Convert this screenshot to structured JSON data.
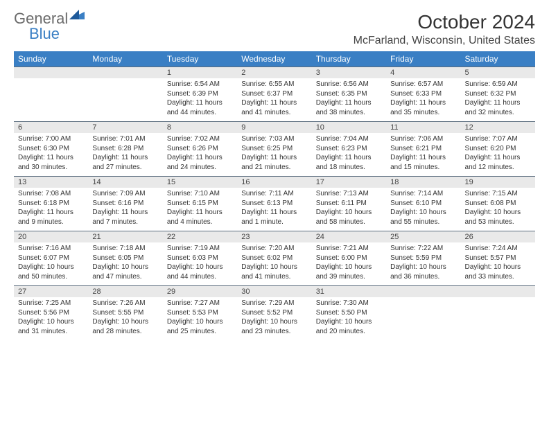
{
  "logo": {
    "part1": "General",
    "part2": "Blue"
  },
  "title": "October 2024",
  "location": "McFarland, Wisconsin, United States",
  "colors": {
    "header_bg": "#3a7fc4",
    "header_text": "#ffffff",
    "num_bg": "#e9e9e9",
    "num_border": "#5a6c7d",
    "text": "#333333",
    "logo_gray": "#6b6b6b",
    "logo_blue": "#3a7fc4",
    "page_bg": "#ffffff"
  },
  "day_names": [
    "Sunday",
    "Monday",
    "Tuesday",
    "Wednesday",
    "Thursday",
    "Friday",
    "Saturday"
  ],
  "weeks": [
    [
      {
        "n": "",
        "s": ""
      },
      {
        "n": "",
        "s": ""
      },
      {
        "n": "1",
        "s": "Sunrise: 6:54 AM\nSunset: 6:39 PM\nDaylight: 11 hours and 44 minutes."
      },
      {
        "n": "2",
        "s": "Sunrise: 6:55 AM\nSunset: 6:37 PM\nDaylight: 11 hours and 41 minutes."
      },
      {
        "n": "3",
        "s": "Sunrise: 6:56 AM\nSunset: 6:35 PM\nDaylight: 11 hours and 38 minutes."
      },
      {
        "n": "4",
        "s": "Sunrise: 6:57 AM\nSunset: 6:33 PM\nDaylight: 11 hours and 35 minutes."
      },
      {
        "n": "5",
        "s": "Sunrise: 6:59 AM\nSunset: 6:32 PM\nDaylight: 11 hours and 32 minutes."
      }
    ],
    [
      {
        "n": "6",
        "s": "Sunrise: 7:00 AM\nSunset: 6:30 PM\nDaylight: 11 hours and 30 minutes."
      },
      {
        "n": "7",
        "s": "Sunrise: 7:01 AM\nSunset: 6:28 PM\nDaylight: 11 hours and 27 minutes."
      },
      {
        "n": "8",
        "s": "Sunrise: 7:02 AM\nSunset: 6:26 PM\nDaylight: 11 hours and 24 minutes."
      },
      {
        "n": "9",
        "s": "Sunrise: 7:03 AM\nSunset: 6:25 PM\nDaylight: 11 hours and 21 minutes."
      },
      {
        "n": "10",
        "s": "Sunrise: 7:04 AM\nSunset: 6:23 PM\nDaylight: 11 hours and 18 minutes."
      },
      {
        "n": "11",
        "s": "Sunrise: 7:06 AM\nSunset: 6:21 PM\nDaylight: 11 hours and 15 minutes."
      },
      {
        "n": "12",
        "s": "Sunrise: 7:07 AM\nSunset: 6:20 PM\nDaylight: 11 hours and 12 minutes."
      }
    ],
    [
      {
        "n": "13",
        "s": "Sunrise: 7:08 AM\nSunset: 6:18 PM\nDaylight: 11 hours and 9 minutes."
      },
      {
        "n": "14",
        "s": "Sunrise: 7:09 AM\nSunset: 6:16 PM\nDaylight: 11 hours and 7 minutes."
      },
      {
        "n": "15",
        "s": "Sunrise: 7:10 AM\nSunset: 6:15 PM\nDaylight: 11 hours and 4 minutes."
      },
      {
        "n": "16",
        "s": "Sunrise: 7:11 AM\nSunset: 6:13 PM\nDaylight: 11 hours and 1 minute."
      },
      {
        "n": "17",
        "s": "Sunrise: 7:13 AM\nSunset: 6:11 PM\nDaylight: 10 hours and 58 minutes."
      },
      {
        "n": "18",
        "s": "Sunrise: 7:14 AM\nSunset: 6:10 PM\nDaylight: 10 hours and 55 minutes."
      },
      {
        "n": "19",
        "s": "Sunrise: 7:15 AM\nSunset: 6:08 PM\nDaylight: 10 hours and 53 minutes."
      }
    ],
    [
      {
        "n": "20",
        "s": "Sunrise: 7:16 AM\nSunset: 6:07 PM\nDaylight: 10 hours and 50 minutes."
      },
      {
        "n": "21",
        "s": "Sunrise: 7:18 AM\nSunset: 6:05 PM\nDaylight: 10 hours and 47 minutes."
      },
      {
        "n": "22",
        "s": "Sunrise: 7:19 AM\nSunset: 6:03 PM\nDaylight: 10 hours and 44 minutes."
      },
      {
        "n": "23",
        "s": "Sunrise: 7:20 AM\nSunset: 6:02 PM\nDaylight: 10 hours and 41 minutes."
      },
      {
        "n": "24",
        "s": "Sunrise: 7:21 AM\nSunset: 6:00 PM\nDaylight: 10 hours and 39 minutes."
      },
      {
        "n": "25",
        "s": "Sunrise: 7:22 AM\nSunset: 5:59 PM\nDaylight: 10 hours and 36 minutes."
      },
      {
        "n": "26",
        "s": "Sunrise: 7:24 AM\nSunset: 5:57 PM\nDaylight: 10 hours and 33 minutes."
      }
    ],
    [
      {
        "n": "27",
        "s": "Sunrise: 7:25 AM\nSunset: 5:56 PM\nDaylight: 10 hours and 31 minutes."
      },
      {
        "n": "28",
        "s": "Sunrise: 7:26 AM\nSunset: 5:55 PM\nDaylight: 10 hours and 28 minutes."
      },
      {
        "n": "29",
        "s": "Sunrise: 7:27 AM\nSunset: 5:53 PM\nDaylight: 10 hours and 25 minutes."
      },
      {
        "n": "30",
        "s": "Sunrise: 7:29 AM\nSunset: 5:52 PM\nDaylight: 10 hours and 23 minutes."
      },
      {
        "n": "31",
        "s": "Sunrise: 7:30 AM\nSunset: 5:50 PM\nDaylight: 10 hours and 20 minutes."
      },
      {
        "n": "",
        "s": ""
      },
      {
        "n": "",
        "s": ""
      }
    ]
  ]
}
